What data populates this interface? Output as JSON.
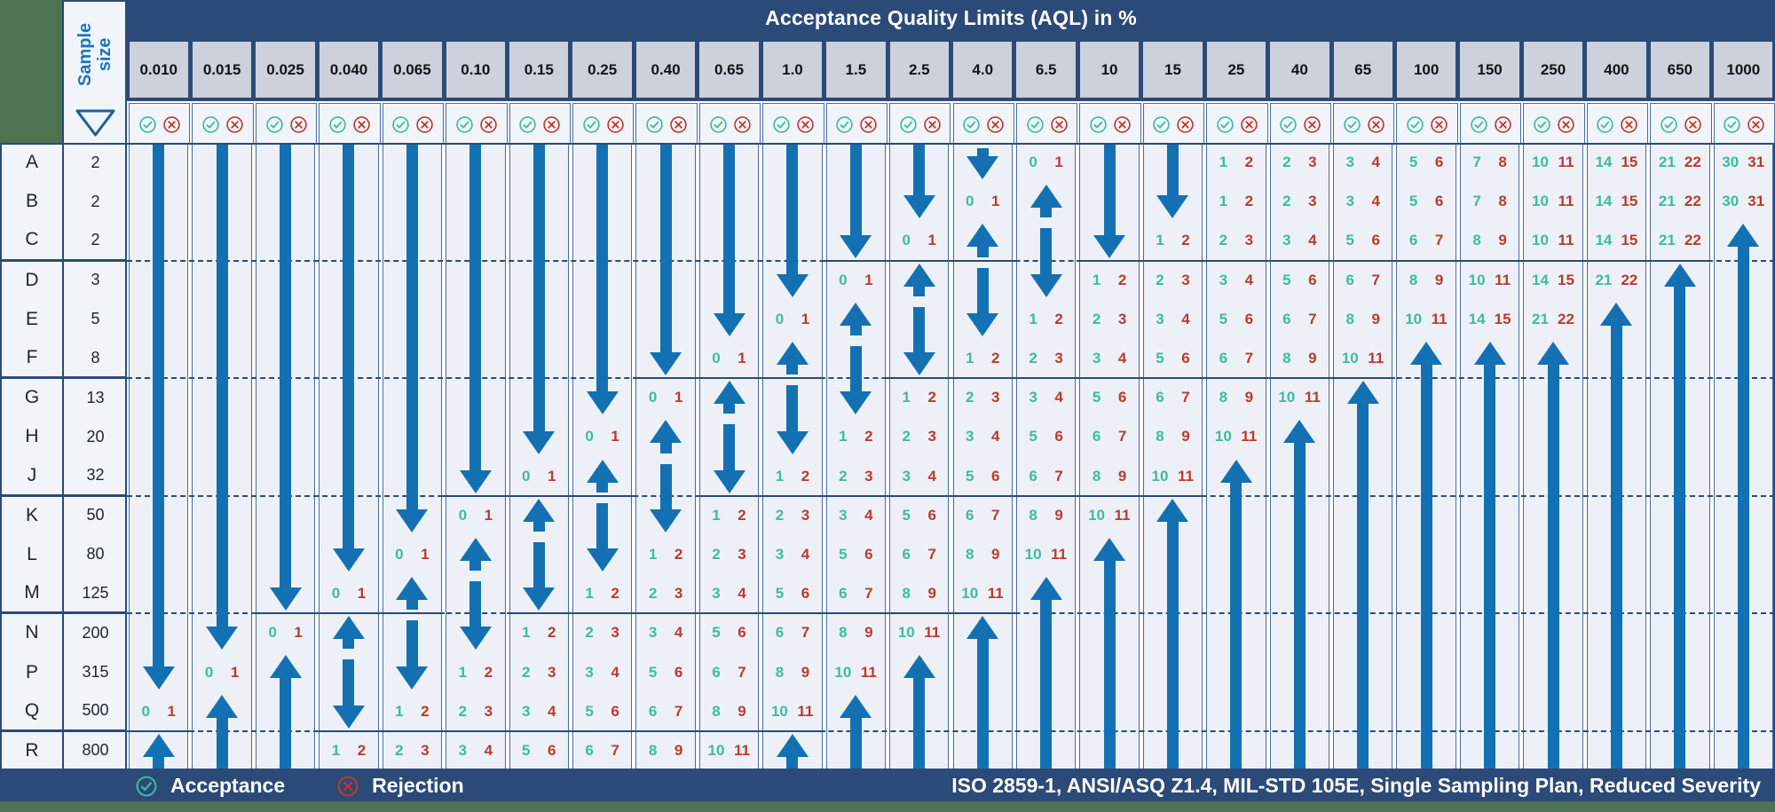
{
  "title": "Acceptance Quality Limits (AQL) in %",
  "sample_size_label": "Sample size",
  "legend": {
    "acceptance": "Acceptance",
    "rejection": "Rejection"
  },
  "footer_standards": "ISO 2859-1, ANSI/ASQ Z1.4, MIL-STD 105E, Single Sampling Plan, Reduced Severity",
  "icons": {
    "acceptance": "circled-check-icon",
    "rejection": "circled-x-icon",
    "column_pointer": "down-triangle-icon"
  },
  "colors": {
    "navy": "#2b4a78",
    "green": "#4d7254",
    "arrow_blue": "#1371b3",
    "accept_teal": "#3bbca0",
    "reject_red": "#bc3a2c",
    "header_grey": "#ccd1db",
    "cell_bg": "#edf1f7",
    "side_bg": "#f1f4f9"
  },
  "chart_data": {
    "type": "table",
    "title": "Acceptance Quality Limits (AQL) in %",
    "columns": [
      "0.010",
      "0.015",
      "0.025",
      "0.040",
      "0.065",
      "0.10",
      "0.15",
      "0.25",
      "0.40",
      "0.65",
      "1.0",
      "1.5",
      "2.5",
      "4.0",
      "6.5",
      "10",
      "15",
      "25",
      "40",
      "65",
      "100",
      "150",
      "250",
      "400",
      "650",
      "1000"
    ],
    "cell_codes": {
      "d": "vertical arrow shaft passing through cell",
      "dv": "downward arrowhead - use first sampling plan below",
      "u": "upward arrowhead - use first sampling plan above",
      "ds": "downward arrow shaft starting in cell",
      "Ac Re pair": "acceptance number (teal) and rejection number (red)"
    },
    "group_end_rows": [
      2,
      5,
      8,
      11,
      14
    ],
    "rows": [
      {
        "code": "A",
        "sample_size": 2,
        "cells": [
          "d",
          "d",
          "d",
          "d",
          "d",
          "d",
          "d",
          "d",
          "d",
          "d",
          "d",
          "d",
          "d",
          "dv",
          "0 1",
          "d",
          "d",
          "1 2",
          "2 3",
          "3 4",
          "5 6",
          "7 8",
          "10 11",
          "14 15",
          "21 22",
          "30 31"
        ]
      },
      {
        "code": "B",
        "sample_size": 2,
        "cells": [
          "d",
          "d",
          "d",
          "d",
          "d",
          "d",
          "d",
          "d",
          "d",
          "d",
          "d",
          "d",
          "dv",
          "0 1",
          "u",
          "d",
          "dv",
          "1 2",
          "2 3",
          "3 4",
          "5 6",
          "7 8",
          "10 11",
          "14 15",
          "21 22",
          "30 31"
        ]
      },
      {
        "code": "C",
        "sample_size": 2,
        "cells": [
          "d",
          "d",
          "d",
          "d",
          "d",
          "d",
          "d",
          "d",
          "d",
          "d",
          "d",
          "dv",
          "0 1",
          "u",
          "ds",
          "dv",
          "1 2",
          "2 3",
          "3 4",
          "5 6",
          "6 7",
          "8 9",
          "10 11",
          "14 15",
          "21 22",
          "u"
        ]
      },
      {
        "code": "D",
        "sample_size": 3,
        "cells": [
          "d",
          "d",
          "d",
          "d",
          "d",
          "d",
          "d",
          "d",
          "d",
          "d",
          "dv",
          "0 1",
          "u",
          "ds",
          "dv",
          "1 2",
          "2 3",
          "3 4",
          "5 6",
          "6 7",
          "8 9",
          "10 11",
          "14 15",
          "21 22",
          "u",
          "d"
        ]
      },
      {
        "code": "E",
        "sample_size": 5,
        "cells": [
          "d",
          "d",
          "d",
          "d",
          "d",
          "d",
          "d",
          "d",
          "d",
          "dv",
          "0 1",
          "u",
          "ds",
          "dv",
          "1 2",
          "2 3",
          "3 4",
          "5 6",
          "6 7",
          "8 9",
          "10 11",
          "14 15",
          "21 22",
          "u",
          "d",
          "d"
        ]
      },
      {
        "code": "F",
        "sample_size": 8,
        "cells": [
          "d",
          "d",
          "d",
          "d",
          "d",
          "d",
          "d",
          "d",
          "dv",
          "0 1",
          "u",
          "ds",
          "dv",
          "1 2",
          "2 3",
          "3 4",
          "5 6",
          "6 7",
          "8 9",
          "10 11",
          "u",
          "u",
          "u",
          "d",
          "d",
          "d"
        ]
      },
      {
        "code": "G",
        "sample_size": 13,
        "cells": [
          "d",
          "d",
          "d",
          "d",
          "d",
          "d",
          "d",
          "dv",
          "0 1",
          "u",
          "ds",
          "dv",
          "1 2",
          "2 3",
          "3 4",
          "5 6",
          "6 7",
          "8 9",
          "10 11",
          "u",
          "d",
          "d",
          "d",
          "d",
          "d",
          "d"
        ]
      },
      {
        "code": "H",
        "sample_size": 20,
        "cells": [
          "d",
          "d",
          "d",
          "d",
          "d",
          "d",
          "dv",
          "0 1",
          "u",
          "ds",
          "dv",
          "1 2",
          "2 3",
          "3 4",
          "5 6",
          "6 7",
          "8 9",
          "10 11",
          "u",
          "d",
          "d",
          "d",
          "d",
          "d",
          "d",
          "d"
        ]
      },
      {
        "code": "J",
        "sample_size": 32,
        "cells": [
          "d",
          "d",
          "d",
          "d",
          "d",
          "dv",
          "0 1",
          "u",
          "ds",
          "dv",
          "1 2",
          "2 3",
          "3 4",
          "5 6",
          "6 7",
          "8 9",
          "10 11",
          "u",
          "d",
          "d",
          "d",
          "d",
          "d",
          "d",
          "d",
          "d"
        ]
      },
      {
        "code": "K",
        "sample_size": 50,
        "cells": [
          "d",
          "d",
          "d",
          "d",
          "dv",
          "0 1",
          "u",
          "ds",
          "dv",
          "1 2",
          "2 3",
          "3 4",
          "5 6",
          "6 7",
          "8 9",
          "10 11",
          "u",
          "d",
          "d",
          "d",
          "d",
          "d",
          "d",
          "d",
          "d",
          "d"
        ]
      },
      {
        "code": "L",
        "sample_size": 80,
        "cells": [
          "d",
          "d",
          "d",
          "dv",
          "0 1",
          "u",
          "ds",
          "dv",
          "1 2",
          "2 3",
          "3 4",
          "5 6",
          "6 7",
          "8 9",
          "10 11",
          "u",
          "d",
          "d",
          "d",
          "d",
          "d",
          "d",
          "d",
          "d",
          "d",
          "d"
        ]
      },
      {
        "code": "M",
        "sample_size": 125,
        "cells": [
          "d",
          "d",
          "dv",
          "0 1",
          "u",
          "ds",
          "dv",
          "1 2",
          "2 3",
          "3 4",
          "5 6",
          "6 7",
          "8 9",
          "10 11",
          "u",
          "d",
          "d",
          "d",
          "d",
          "d",
          "d",
          "d",
          "d",
          "d",
          "d",
          "d"
        ]
      },
      {
        "code": "N",
        "sample_size": 200,
        "cells": [
          "d",
          "dv",
          "0 1",
          "u",
          "ds",
          "dv",
          "1 2",
          "2 3",
          "3 4",
          "5 6",
          "6 7",
          "8 9",
          "10 11",
          "u",
          "d",
          "d",
          "d",
          "d",
          "d",
          "d",
          "d",
          "d",
          "d",
          "d",
          "d",
          "d"
        ]
      },
      {
        "code": "P",
        "sample_size": 315,
        "cells": [
          "dv",
          "0 1",
          "u",
          "ds",
          "dv",
          "1 2",
          "2 3",
          "3 4",
          "5 6",
          "6 7",
          "8 9",
          "10 11",
          "u",
          "d",
          "d",
          "d",
          "d",
          "d",
          "d",
          "d",
          "d",
          "d",
          "d",
          "d",
          "d",
          "d"
        ]
      },
      {
        "code": "Q",
        "sample_size": 500,
        "cells": [
          "0 1",
          "u",
          "d",
          "dv",
          "1 2",
          "2 3",
          "3 4",
          "5 6",
          "6 7",
          "8 9",
          "10 11",
          "u",
          "d",
          "d",
          "d",
          "d",
          "d",
          "d",
          "d",
          "d",
          "d",
          "d",
          "d",
          "d",
          "d",
          "d"
        ]
      },
      {
        "code": "R",
        "sample_size": 800,
        "cells": [
          "u",
          "d",
          "d",
          "1 2",
          "2 3",
          "3 4",
          "5 6",
          "6 7",
          "8 9",
          "10 11",
          "u",
          "d",
          "d",
          "d",
          "d",
          "d",
          "d",
          "d",
          "d",
          "d",
          "d",
          "d",
          "d",
          "d",
          "d",
          "d"
        ]
      }
    ]
  }
}
